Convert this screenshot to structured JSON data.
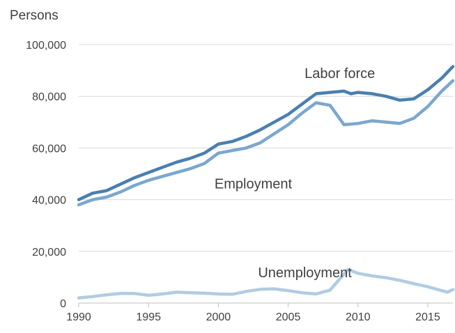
{
  "chart_data": {
    "type": "line",
    "title": "",
    "ylabel": "Persons",
    "xlabel": "",
    "xlim": [
      1990,
      2016.8
    ],
    "ylim": [
      0,
      100000
    ],
    "x_ticks": [
      1990,
      1995,
      2000,
      2005,
      2010,
      2015
    ],
    "x_tick_labels": [
      "1990",
      "1995",
      "2000",
      "2005",
      "2010",
      "2015"
    ],
    "y_ticks": [
      0,
      20000,
      40000,
      60000,
      80000,
      100000
    ],
    "y_tick_labels": [
      "0",
      "20,000",
      "40,000",
      "60,000",
      "80,000",
      "100,000"
    ],
    "grid": "horizontal",
    "legend": "none (series labelled directly on the lines)",
    "series": [
      {
        "name": "Labor force",
        "color": "#4a7fb0",
        "points": [
          [
            1990,
            40000
          ],
          [
            1991,
            42500
          ],
          [
            1992,
            43500
          ],
          [
            1993,
            46000
          ],
          [
            1994,
            48500
          ],
          [
            1995,
            50500
          ],
          [
            1996,
            52500
          ],
          [
            1997,
            54500
          ],
          [
            1998,
            56000
          ],
          [
            1999,
            58000
          ],
          [
            2000,
            61500
          ],
          [
            2001,
            62500
          ],
          [
            2002,
            64500
          ],
          [
            2003,
            67000
          ],
          [
            2004,
            70000
          ],
          [
            2005,
            73000
          ],
          [
            2006,
            77000
          ],
          [
            2007,
            81000
          ],
          [
            2008,
            81500
          ],
          [
            2009,
            82000
          ],
          [
            2009.5,
            81000
          ],
          [
            2010,
            81500
          ],
          [
            2011,
            81000
          ],
          [
            2012,
            80000
          ],
          [
            2013,
            78500
          ],
          [
            2014,
            79000
          ],
          [
            2015,
            82500
          ],
          [
            2016,
            87000
          ],
          [
            2016.8,
            91500
          ]
        ]
      },
      {
        "name": "Employment",
        "color": "#7ba7cf",
        "points": [
          [
            1990,
            38000
          ],
          [
            1991,
            40000
          ],
          [
            1992,
            41000
          ],
          [
            1993,
            43000
          ],
          [
            1994,
            45500
          ],
          [
            1995,
            47500
          ],
          [
            1996,
            49000
          ],
          [
            1997,
            50500
          ],
          [
            1998,
            52000
          ],
          [
            1999,
            54000
          ],
          [
            2000,
            58000
          ],
          [
            2001,
            59000
          ],
          [
            2002,
            60000
          ],
          [
            2003,
            62000
          ],
          [
            2004,
            65500
          ],
          [
            2005,
            69000
          ],
          [
            2006,
            73500
          ],
          [
            2007,
            77500
          ],
          [
            2008,
            76500
          ],
          [
            2009,
            69000
          ],
          [
            2010,
            69500
          ],
          [
            2011,
            70500
          ],
          [
            2012,
            70000
          ],
          [
            2013,
            69500
          ],
          [
            2014,
            71500
          ],
          [
            2015,
            76000
          ],
          [
            2016,
            82000
          ],
          [
            2016.8,
            86000
          ]
        ]
      },
      {
        "name": "Unemployment",
        "color": "#b0cce4",
        "points": [
          [
            1990,
            2000
          ],
          [
            1991,
            2500
          ],
          [
            1992,
            3200
          ],
          [
            1993,
            3700
          ],
          [
            1994,
            3700
          ],
          [
            1995,
            3000
          ],
          [
            1996,
            3500
          ],
          [
            1997,
            4200
          ],
          [
            1998,
            4000
          ],
          [
            1999,
            3800
          ],
          [
            2000,
            3500
          ],
          [
            2001,
            3400
          ],
          [
            2002,
            4500
          ],
          [
            2003,
            5300
          ],
          [
            2004,
            5500
          ],
          [
            2005,
            4800
          ],
          [
            2006,
            4000
          ],
          [
            2007,
            3500
          ],
          [
            2008,
            5000
          ],
          [
            2008.8,
            10000
          ],
          [
            2009.3,
            13000
          ],
          [
            2010,
            11500
          ],
          [
            2011,
            10500
          ],
          [
            2012,
            9800
          ],
          [
            2013,
            8800
          ],
          [
            2014,
            7500
          ],
          [
            2015,
            6300
          ],
          [
            2016,
            4800
          ],
          [
            2016.4,
            4200
          ],
          [
            2016.8,
            5200
          ]
        ]
      }
    ],
    "annotations": [
      "Labor force",
      "Employment",
      "Unemployment"
    ]
  }
}
